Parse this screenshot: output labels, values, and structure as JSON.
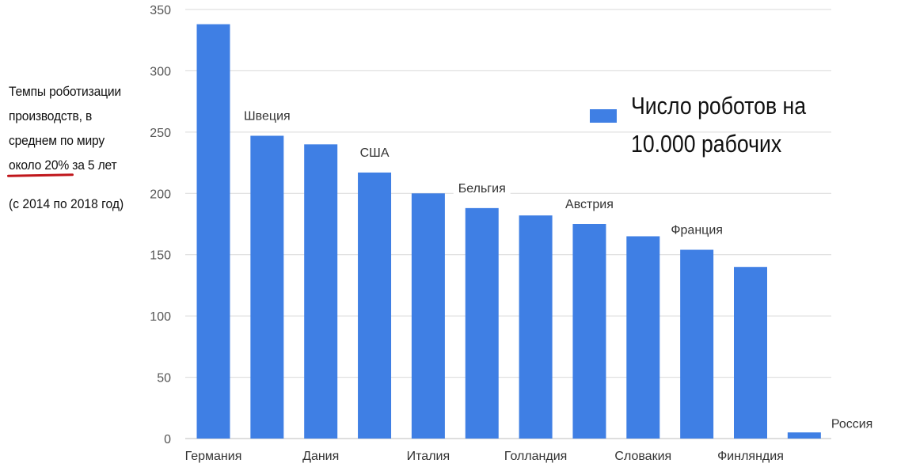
{
  "side_note": {
    "line1": "Темпы роботизации",
    "line2": "производств, в",
    "line3": "среднем по миру",
    "line4_highlight": "около 20%",
    "line4_rest": " за 5 лет",
    "period": "(с 2014 по 2018 год)"
  },
  "legend": {
    "line1": "Число роботов на",
    "line2": "10.000 рабочих"
  },
  "colors": {
    "bar": "#3f7fe4",
    "grid": "#d9d9d9",
    "underline": "#c0161b"
  },
  "chart_data": {
    "type": "bar",
    "categories": [
      "Германия",
      "Швеция",
      "Дания",
      "США",
      "Италия",
      "Бельгия",
      "Голландия",
      "Австрия",
      "Словакия",
      "Франция",
      "Финляндия",
      "Россия"
    ],
    "values": [
      338,
      247,
      240,
      217,
      200,
      188,
      182,
      175,
      165,
      154,
      140,
      5
    ],
    "series": [
      {
        "name": "Число роботов на 10.000 рабочих",
        "values": [
          338,
          247,
          240,
          217,
          200,
          188,
          182,
          175,
          165,
          154,
          140,
          5
        ]
      }
    ],
    "ylim": [
      0,
      350
    ],
    "yticks": [
      0,
      50,
      100,
      150,
      200,
      250,
      300,
      350
    ],
    "label_placement": [
      "below",
      "above",
      "below",
      "above",
      "below",
      "above",
      "below",
      "above",
      "below",
      "above",
      "below",
      "right"
    ],
    "grid": true,
    "legend": "top-right",
    "xlabel": "",
    "ylabel": ""
  }
}
